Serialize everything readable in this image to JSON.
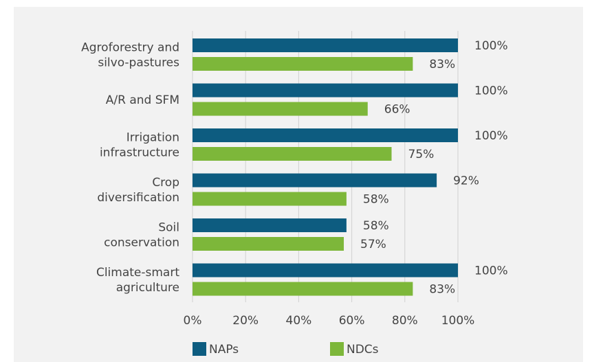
{
  "chart_data": {
    "type": "bar",
    "orientation": "horizontal",
    "categories": [
      [
        "Agroforestry and",
        "silvo-pastures"
      ],
      [
        "A/R and SFM"
      ],
      [
        "Irrigation",
        "infrastructure"
      ],
      [
        "Crop",
        "diversification"
      ],
      [
        "Soil",
        "conservation"
      ],
      [
        "Climate-smart",
        "agriculture"
      ]
    ],
    "series": [
      {
        "name": "NAPs",
        "color": "#0d5c80",
        "values": [
          100,
          100,
          100,
          92,
          58,
          100
        ]
      },
      {
        "name": "NDCs",
        "color": "#7db73a",
        "values": [
          83,
          66,
          75,
          58,
          57,
          83
        ]
      }
    ],
    "value_suffix": "%",
    "xlim": [
      0,
      100
    ],
    "x_ticks": [
      0,
      20,
      40,
      60,
      80,
      100
    ],
    "grid": true,
    "legend_position": "bottom"
  }
}
